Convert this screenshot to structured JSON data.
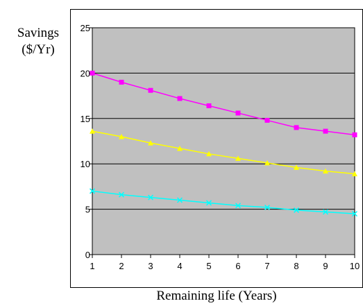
{
  "chart_data": {
    "type": "line",
    "title": "",
    "ylabel_lines": [
      "Savings",
      "($/Yr)"
    ],
    "xlabel": "Remaining life (Years)",
    "x": [
      1,
      2,
      3,
      4,
      5,
      6,
      7,
      8,
      9,
      10
    ],
    "ylim": [
      0,
      25
    ],
    "yticks": [
      0,
      5,
      10,
      15,
      20,
      25
    ],
    "grid": true,
    "plot_background": "#c0c0c0",
    "series": [
      {
        "color": "#ff00ff",
        "marker": "square",
        "values": [
          20.0,
          19.0,
          18.1,
          17.2,
          16.4,
          15.6,
          14.8,
          14.0,
          13.6,
          13.2
        ]
      },
      {
        "color": "#ffff00",
        "marker": "triangle",
        "values": [
          13.6,
          13.0,
          12.3,
          11.7,
          11.1,
          10.6,
          10.1,
          9.6,
          9.2,
          8.9
        ]
      },
      {
        "color": "#00ffff",
        "marker": "x",
        "values": [
          7.0,
          6.6,
          6.3,
          6.0,
          5.7,
          5.4,
          5.2,
          4.9,
          4.7,
          4.5
        ]
      }
    ]
  }
}
